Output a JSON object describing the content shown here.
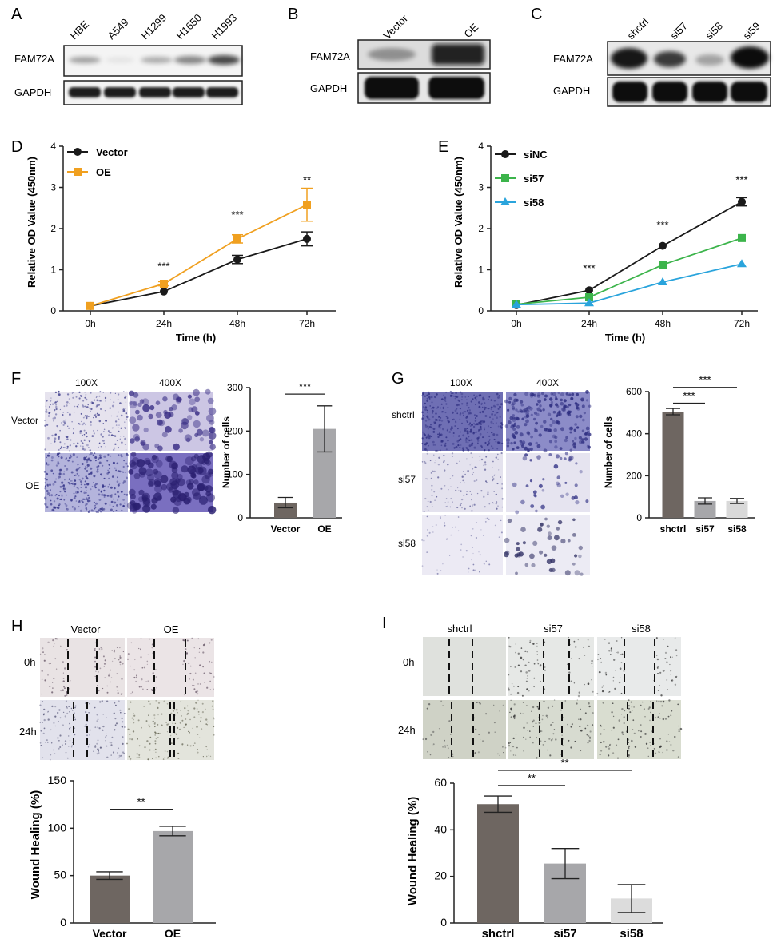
{
  "panel_letters": {
    "a": "A",
    "b": "B",
    "c": "C",
    "d": "D",
    "e": "E",
    "f": "F",
    "g": "G",
    "h": "H",
    "i": "I"
  },
  "colors": {
    "black_series": "#1a1a1a",
    "orange_series": "#f0a020",
    "green_series": "#3cb44b",
    "blue_series": "#2aa4dc",
    "bar_dark": "#6e6661",
    "bar_mid": "#a7a7aa",
    "bar_light": "#d9d9d9",
    "blot_band": "#1b1b1b"
  },
  "blots": {
    "a": {
      "lanes": [
        "HBE",
        "A549",
        "H1299",
        "H1650",
        "H1993"
      ],
      "rows": [
        "FAM72A",
        "GAPDH"
      ]
    },
    "b": {
      "lanes": [
        "Vector",
        "OE"
      ],
      "rows": [
        "FAM72A",
        "GAPDH"
      ]
    },
    "c": {
      "lanes": [
        "shctrl",
        "si57",
        "si58",
        "si59"
      ],
      "rows": [
        "FAM72A",
        "GAPDH"
      ]
    }
  },
  "micrographs": {
    "f": {
      "columns": [
        "100X",
        "400X"
      ],
      "rows": [
        "Vector",
        "OE"
      ]
    },
    "g": {
      "columns": [
        "100X",
        "400X"
      ],
      "rows": [
        "shctrl",
        "si57",
        "si58"
      ]
    },
    "h": {
      "columns": [
        "Vector",
        "OE"
      ],
      "rows": [
        "0h",
        "24h"
      ]
    },
    "i": {
      "columns": [
        "shctrl",
        "si57",
        "si58"
      ],
      "rows": [
        "0h",
        "24h"
      ]
    }
  },
  "chart_data": [
    {
      "id": "D",
      "type": "line",
      "xlabel": "Time (h)",
      "ylabel": "Relative OD Value (450nm)",
      "categories": [
        "0h",
        "24h",
        "48h",
        "72h"
      ],
      "ylim": [
        0,
        4
      ],
      "yticks": [
        "0",
        "1",
        "2",
        "3",
        "4"
      ],
      "series": [
        {
          "name": "Vector",
          "values": [
            0.12,
            0.47,
            1.25,
            1.75
          ],
          "errors": [
            0.03,
            0.03,
            0.1,
            0.17
          ],
          "color": "#1a1a1a",
          "marker": "circle"
        },
        {
          "name": "OE",
          "values": [
            0.12,
            0.66,
            1.75,
            2.58
          ],
          "errors": [
            0.03,
            0.05,
            0.1,
            0.4
          ],
          "color": "#f0a020",
          "marker": "square"
        }
      ],
      "annotations": [
        {
          "cat": 1,
          "y": 1.0,
          "text": "***"
        },
        {
          "cat": 2,
          "y": 2.25,
          "text": "***"
        },
        {
          "cat": 3,
          "y": 3.1,
          "text": "**"
        }
      ],
      "legend": "top-left"
    },
    {
      "id": "E",
      "type": "line",
      "xlabel": "Time (h)",
      "ylabel": "Relative OD Value (450nm)",
      "categories": [
        "0h",
        "24h",
        "48h",
        "72h"
      ],
      "ylim": [
        0,
        4
      ],
      "yticks": [
        "0",
        "1",
        "2",
        "3",
        "4"
      ],
      "series": [
        {
          "name": "siNC",
          "values": [
            0.14,
            0.5,
            1.58,
            2.65
          ],
          "errors": [
            0.02,
            0.03,
            0.04,
            0.1
          ],
          "color": "#1a1a1a",
          "marker": "circle"
        },
        {
          "name": "si57",
          "values": [
            0.16,
            0.33,
            1.12,
            1.77
          ],
          "errors": [
            0.02,
            0.03,
            0.04,
            0.04
          ],
          "color": "#3cb44b",
          "marker": "square"
        },
        {
          "name": "si58",
          "values": [
            0.15,
            0.19,
            0.7,
            1.14
          ],
          "errors": [
            0.02,
            0.02,
            0.03,
            0.03
          ],
          "color": "#2aa4dc",
          "marker": "triangle"
        }
      ],
      "annotations": [
        {
          "cat": 1,
          "y": 0.95,
          "text": "***"
        },
        {
          "cat": 2,
          "y": 2.0,
          "text": "***"
        },
        {
          "cat": 3,
          "y": 3.1,
          "text": "***"
        }
      ],
      "legend": "top-left"
    },
    {
      "id": "F",
      "type": "bar",
      "ylabel": "Number of cells",
      "categories": [
        "Vector",
        "OE"
      ],
      "values": [
        35,
        205
      ],
      "errors": [
        12,
        53
      ],
      "ylim": [
        0,
        300
      ],
      "yticks": [
        "0",
        "100",
        "200",
        "300"
      ],
      "colors": [
        "#6e6661",
        "#a7a7aa"
      ],
      "brackets": [
        {
          "from": 0,
          "to": 1,
          "y": 285,
          "text": "***"
        }
      ]
    },
    {
      "id": "G",
      "type": "bar",
      "ylabel": "Number of cells",
      "categories": [
        "shctrl",
        "si57",
        "si58"
      ],
      "values": [
        505,
        80,
        80
      ],
      "errors": [
        15,
        15,
        12
      ],
      "ylim": [
        0,
        600
      ],
      "yticks": [
        "0",
        "200",
        "400",
        "600"
      ],
      "colors": [
        "#6e6661",
        "#a7a7aa",
        "#d9d9d9"
      ],
      "brackets": [
        {
          "from": 0,
          "to": 1,
          "y": 545,
          "text": "***"
        },
        {
          "from": 0,
          "to": 2,
          "y": 620,
          "text": "***"
        }
      ]
    },
    {
      "id": "H",
      "type": "bar",
      "ylabel": "Wound Healing (%)",
      "categories": [
        "Vector",
        "OE"
      ],
      "values": [
        50,
        97
      ],
      "errors": [
        4,
        5
      ],
      "ylim": [
        0,
        150
      ],
      "yticks": [
        "0",
        "50",
        "100",
        "150"
      ],
      "colors": [
        "#6e6661",
        "#a7a7aa"
      ],
      "brackets": [
        {
          "from": 0,
          "to": 1,
          "y": 120,
          "text": "**"
        }
      ]
    },
    {
      "id": "I",
      "type": "bar",
      "ylabel": "Wound Healing (%)",
      "categories": [
        "shctrl",
        "si57",
        "si58"
      ],
      "values": [
        51,
        25.5,
        10.5
      ],
      "errors": [
        3.5,
        6.5,
        6
      ],
      "ylim": [
        0,
        70
      ],
      "yticks": [
        "0",
        "20",
        "40",
        "60"
      ],
      "colors": [
        "#6e6661",
        "#a7a7aa",
        "#dcdcdc"
      ],
      "brackets": [
        {
          "from": 0,
          "to": 1,
          "y": 59,
          "text": "**"
        },
        {
          "from": 0,
          "to": 2,
          "y": 65.5,
          "text": "**"
        }
      ]
    }
  ]
}
